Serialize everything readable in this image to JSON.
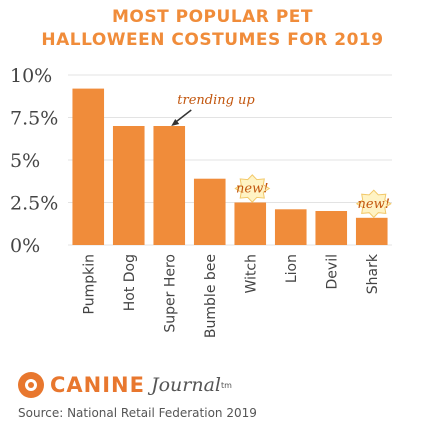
{
  "chart_data": {
    "type": "bar",
    "title_line1": "MOST POPULAR PET",
    "title_line2": "HALLOWEEN COSTUMES FOR 2019",
    "xlabel": "",
    "ylabel": "",
    "ylim": [
      0,
      10
    ],
    "y_ticks": [
      {
        "value": 0,
        "label": "0%"
      },
      {
        "value": 2.5,
        "label": "2.5%"
      },
      {
        "value": 5,
        "label": "5%"
      },
      {
        "value": 7.5,
        "label": "7.5%"
      },
      {
        "value": 10,
        "label": "10%"
      }
    ],
    "categories": [
      "Pumpkin",
      "Hot Dog",
      "Super Hero",
      "Bumble bee",
      "Witch",
      "Lion",
      "Devil",
      "Shark"
    ],
    "values": [
      9.2,
      7.0,
      7.0,
      3.9,
      2.5,
      2.1,
      2.0,
      1.6
    ],
    "bar_color": "#f08c3a",
    "grid": true,
    "annotations": [
      {
        "text": "trending up",
        "category": "Super Hero"
      },
      {
        "text": "new!",
        "category": "Witch"
      },
      {
        "text": "new!",
        "category": "Shark"
      }
    ]
  },
  "footer": {
    "brand_word1": "CANINE",
    "brand_word2": "Journal",
    "brand_mark": "tm",
    "source": "Source: National Retail Federation 2019"
  }
}
